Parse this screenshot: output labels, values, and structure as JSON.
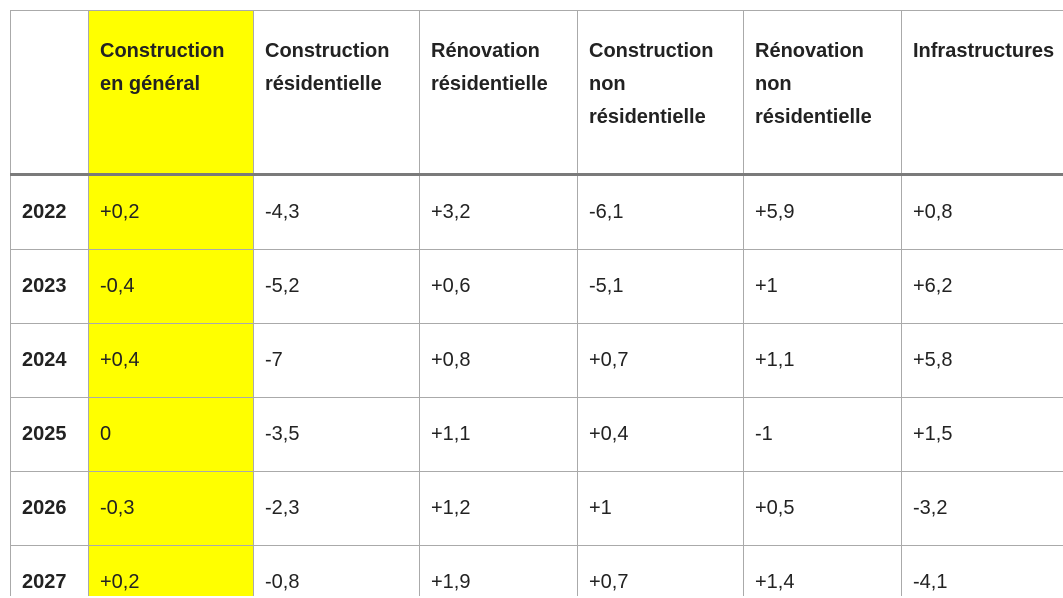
{
  "chart_data": {
    "type": "table",
    "highlight_color": "#ffff00",
    "highlight_column_index": 0,
    "columns": [
      {
        "key": "general",
        "label_lines": [
          "Construction",
          "en général"
        ]
      },
      {
        "key": "res_new",
        "label_lines": [
          "Construction",
          "résidentielle"
        ]
      },
      {
        "key": "res_reno",
        "label_lines": [
          "Rénovation",
          "résidentielle"
        ]
      },
      {
        "key": "nonres_new",
        "label_lines": [
          "Construction",
          "non",
          "résidentielle"
        ]
      },
      {
        "key": "nonres_reno",
        "label_lines": [
          "Rénovation",
          "non",
          "résidentielle"
        ]
      },
      {
        "key": "infra",
        "label_lines": [
          "Infrastructures"
        ]
      }
    ],
    "rows": [
      {
        "year": "2022",
        "values": [
          "+0,2",
          "-4,3",
          "+3,2",
          "-6,1",
          "+5,9",
          "+0,8"
        ]
      },
      {
        "year": "2023",
        "values": [
          "-0,4",
          "-5,2",
          "+0,6",
          "-5,1",
          "+1",
          "+6,2"
        ]
      },
      {
        "year": "2024",
        "values": [
          "+0,4",
          "-7",
          "+0,8",
          "+0,7",
          "+1,1",
          "+5,8"
        ]
      },
      {
        "year": "2025",
        "values": [
          "0",
          "-3,5",
          "+1,1",
          "+0,4",
          "-1",
          "+1,5"
        ]
      },
      {
        "year": "2026",
        "values": [
          "-0,3",
          "-2,3",
          "+1,2",
          "+1",
          "+0,5",
          "-3,2"
        ]
      },
      {
        "year": "2027",
        "values": [
          "+0,2",
          "-0,8",
          "+1,9",
          "+0,7",
          "+1,4",
          "-4,1"
        ]
      }
    ]
  }
}
